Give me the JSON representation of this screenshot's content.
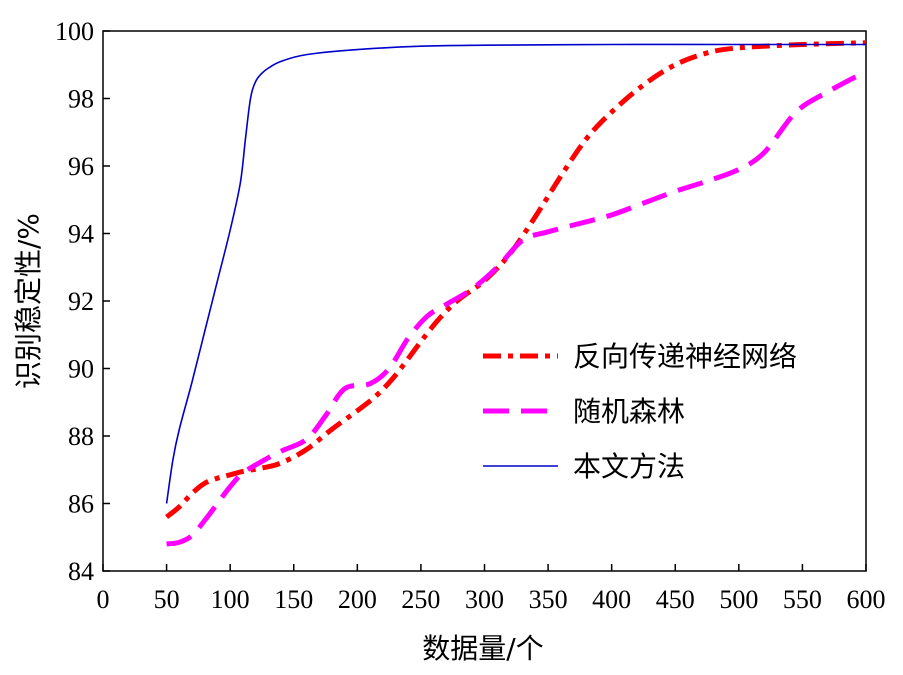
{
  "chart_data": {
    "type": "line",
    "xlabel": "数据量/个",
    "ylabel": "识别稳定性/%",
    "xlim": [
      0,
      600
    ],
    "ylim": [
      84,
      100
    ],
    "x_ticks": [
      0,
      50,
      100,
      150,
      200,
      250,
      300,
      350,
      400,
      450,
      500,
      550,
      600
    ],
    "y_ticks": [
      84,
      86,
      88,
      90,
      92,
      94,
      96,
      98,
      100
    ],
    "grid": false,
    "legend_position": "center-right",
    "series": [
      {
        "name": "反向传递神经网络",
        "color": "#ff0000",
        "style": "dash-dot",
        "x": [
          50,
          60,
          70,
          80,
          90,
          100,
          110,
          125,
          140,
          160,
          180,
          200,
          215,
          230,
          250,
          265,
          280,
          300,
          320,
          340,
          360,
          380,
          400,
          425,
          450,
          475,
          500,
          550,
          600
        ],
        "y": [
          85.6,
          85.9,
          86.3,
          86.6,
          86.75,
          86.85,
          86.95,
          87.05,
          87.2,
          87.6,
          88.2,
          88.75,
          89.2,
          89.8,
          90.8,
          91.5,
          92.05,
          92.6,
          93.4,
          94.5,
          95.7,
          96.8,
          97.6,
          98.4,
          99.0,
          99.35,
          99.5,
          99.6,
          99.65
        ]
      },
      {
        "name": "随机森林",
        "color": "#ff00ff",
        "style": "dashed",
        "x": [
          50,
          60,
          70,
          80,
          90,
          100,
          110,
          125,
          140,
          160,
          175,
          190,
          210,
          225,
          240,
          255,
          270,
          290,
          310,
          330,
          350,
          375,
          400,
          425,
          450,
          475,
          500,
          520,
          545,
          570,
          600
        ],
        "y": [
          84.8,
          84.85,
          85.05,
          85.5,
          86.0,
          86.5,
          86.9,
          87.25,
          87.55,
          87.9,
          88.6,
          89.4,
          89.55,
          90.0,
          90.9,
          91.55,
          91.9,
          92.35,
          93.0,
          93.8,
          94.05,
          94.3,
          94.55,
          94.9,
          95.25,
          95.55,
          95.9,
          96.4,
          97.6,
          98.2,
          98.8
        ]
      },
      {
        "name": "本文方法",
        "color": "#0000cc",
        "style": "solid",
        "x": [
          50,
          55,
          60,
          70,
          80,
          90,
          100,
          108,
          112,
          116,
          120,
          125,
          130,
          140,
          160,
          200,
          250,
          300,
          400,
          500,
          600
        ],
        "y": [
          86.0,
          87.3,
          88.2,
          89.6,
          91.1,
          92.6,
          94.1,
          95.5,
          96.8,
          98.0,
          98.5,
          98.75,
          98.9,
          99.1,
          99.3,
          99.45,
          99.55,
          99.58,
          99.6,
          99.6,
          99.6
        ]
      }
    ]
  }
}
